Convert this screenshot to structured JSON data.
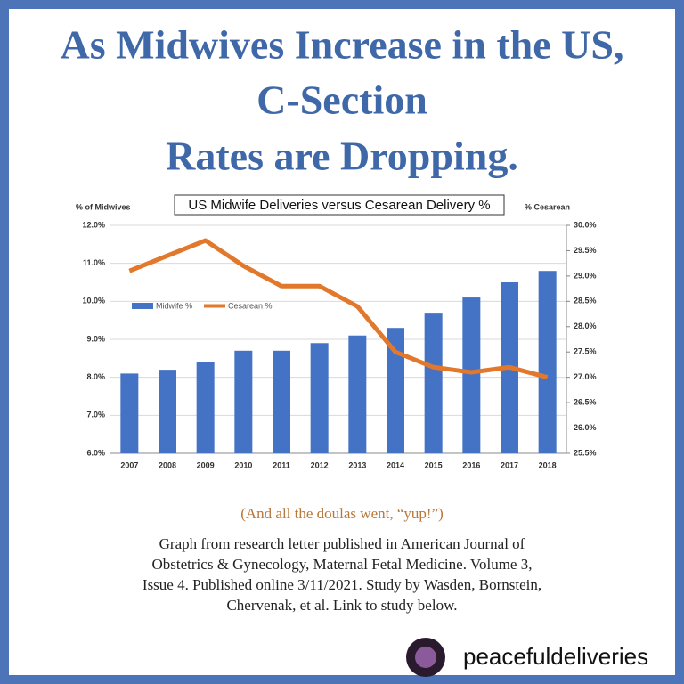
{
  "headline": [
    "As Midwives Increase in the US,",
    "C-Section",
    "Rates are Dropping."
  ],
  "chart_data": {
    "type": "bar_line",
    "title": "US Midwife Deliveries versus Cesarean Delivery %",
    "y_label": "% of Midwives",
    "y2_label": "% Cesarean",
    "categories": [
      "2007",
      "2008",
      "2009",
      "2010",
      "2011",
      "2012",
      "2013",
      "2014",
      "2015",
      "2016",
      "2017",
      "2018"
    ],
    "series": [
      {
        "name": "Midwife %",
        "color": "#4472c4",
        "kind": "bar",
        "values": [
          8.1,
          8.2,
          8.4,
          8.7,
          8.7,
          8.9,
          9.1,
          9.3,
          9.7,
          10.1,
          10.5,
          10.8
        ]
      },
      {
        "name": "Cesarean %",
        "color": "#e2782c",
        "kind": "line",
        "axis": "y2",
        "values": [
          29.1,
          29.4,
          29.7,
          29.2,
          28.8,
          28.8,
          28.4,
          27.5,
          27.2,
          27.1,
          27.2,
          27.0
        ]
      }
    ],
    "ylim": [
      6,
      12
    ],
    "yticks": [
      {
        "value": 6,
        "label": "6.0%"
      },
      {
        "value": 7,
        "label": "7.0%"
      },
      {
        "value": 8,
        "label": "8.0%"
      },
      {
        "value": 9,
        "label": "9.0%"
      },
      {
        "value": 10,
        "label": "10.0%"
      },
      {
        "value": 11,
        "label": "11.0%"
      },
      {
        "value": 12,
        "label": "12.0%"
      }
    ],
    "y2lim": [
      25.5,
      30
    ],
    "y2ticks": [
      {
        "value": 25.5,
        "label": "25.5%"
      },
      {
        "value": 26,
        "label": "26.0%"
      },
      {
        "value": 26.5,
        "label": "26.5%"
      },
      {
        "value": 27,
        "label": "27.0%"
      },
      {
        "value": 27.5,
        "label": "27.5%"
      },
      {
        "value": 28,
        "label": "28.0%"
      },
      {
        "value": 28.5,
        "label": "28.5%"
      },
      {
        "value": 29,
        "label": "29.0%"
      },
      {
        "value": 29.5,
        "label": "29.5%"
      },
      {
        "value": 30,
        "label": "30.0%"
      }
    ],
    "grid": true
  },
  "caption": "(And all the doulas went, “yup!”)",
  "source": [
    "Graph from research letter published in American Journal of",
    "Obstetrics & Gynecology, Maternal Fetal Medicine. Volume 3,",
    "Issue 4. Published online 3/11/2021. Study by Wasden, Bornstein,",
    "Chervenak, et al. Link to study below."
  ],
  "handle": "peacefuldeliveries"
}
